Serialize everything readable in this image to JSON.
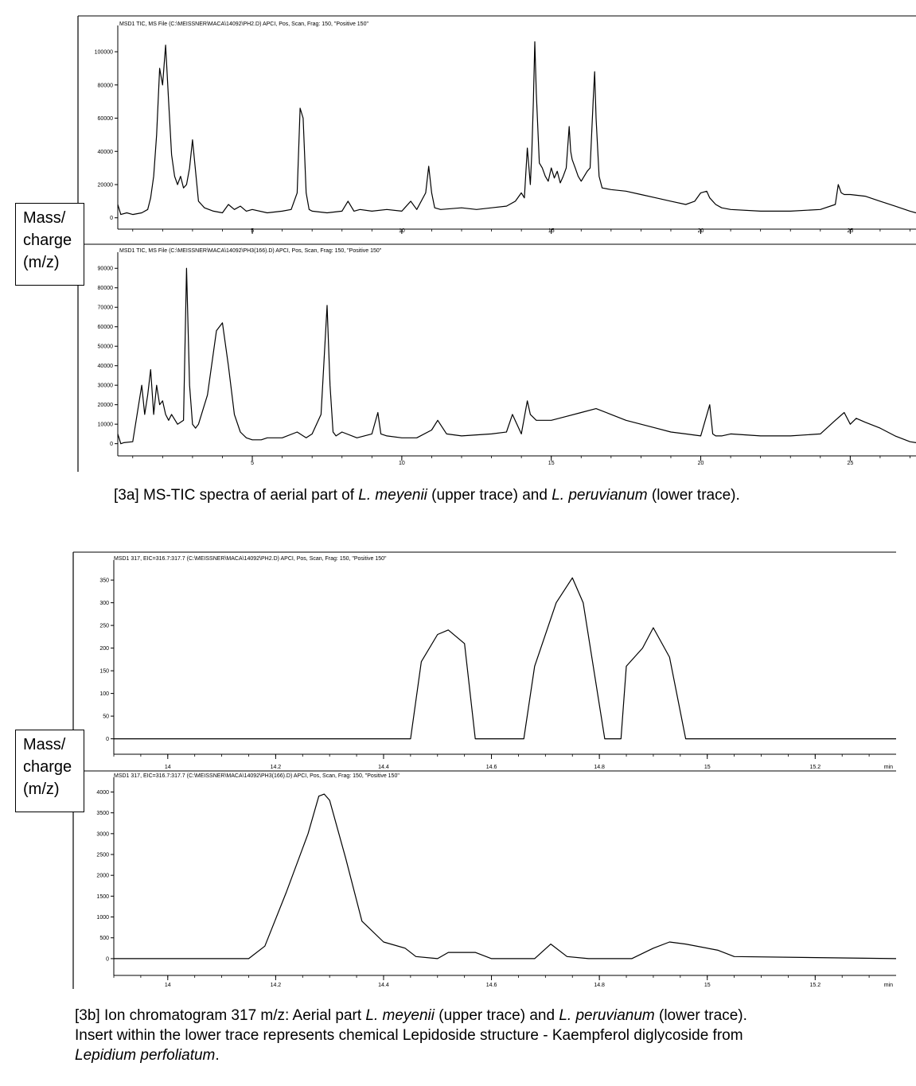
{
  "axis_box_label": [
    "Mass/",
    "charge",
    "(m/z)"
  ],
  "captions": {
    "fig3a": [
      {
        "t": "[3a] MS-TIC spectra of aerial part of ",
        "i": false
      },
      {
        "t": "L. meyenii",
        "i": true
      },
      {
        "t": " (upper trace) and ",
        "i": false
      },
      {
        "t": "L. peruvianum",
        "i": true
      },
      {
        "t": " (lower trace).",
        "i": false
      }
    ],
    "fig3b_line1": [
      {
        "t": "[3b]  Ion chromatogram 317 m/z: Aerial part ",
        "i": false
      },
      {
        "t": "L. meyenii",
        "i": true
      },
      {
        "t": " (upper trace) and ",
        "i": false
      },
      {
        "t": "L. peruvianum",
        "i": true
      },
      {
        "t": " (lower trace).",
        "i": false
      }
    ],
    "fig3b_line2": [
      {
        "t": "Insert within the lower trace represents chemical Lepidoside structure - Kaempferol diglycoside from",
        "i": false
      }
    ],
    "fig3b_line3": [
      {
        "t": "Lepidium perfoliatum",
        "i": true
      },
      {
        "t": ".",
        "i": false
      }
    ]
  },
  "chart_data": [
    {
      "type": "line",
      "header": "MSD1 TIC, MS File (C:\\MEISSNER\\MACA\\14092\\PH2.D)    APCI, Pos, Scan, Frag: 150, \"Positive 150\"",
      "xlim": [
        0.5,
        27.2
      ],
      "ylim": [
        -3000,
        112000
      ],
      "xticks": [
        5,
        10,
        15,
        20,
        25
      ],
      "yticks": [
        0,
        20000,
        40000,
        60000,
        80000,
        100000
      ],
      "x": [
        0.5,
        0.6,
        0.8,
        1.0,
        1.3,
        1.5,
        1.6,
        1.7,
        1.8,
        1.9,
        2.0,
        2.1,
        2.2,
        2.3,
        2.4,
        2.5,
        2.6,
        2.7,
        2.8,
        2.9,
        3.0,
        3.2,
        3.4,
        3.7,
        4.0,
        4.2,
        4.4,
        4.6,
        4.8,
        5.0,
        5.5,
        6.0,
        6.3,
        6.5,
        6.6,
        6.7,
        6.8,
        6.9,
        7.0,
        7.5,
        8.0,
        8.2,
        8.4,
        8.6,
        9.0,
        9.5,
        10.0,
        10.3,
        10.5,
        10.8,
        10.9,
        11.0,
        11.1,
        11.3,
        12.0,
        12.5,
        13.0,
        13.5,
        13.8,
        14.0,
        14.1,
        14.2,
        14.3,
        14.35,
        14.4,
        14.45,
        14.5,
        14.6,
        14.7,
        14.8,
        14.9,
        15.0,
        15.1,
        15.2,
        15.3,
        15.4,
        15.5,
        15.6,
        15.65,
        15.7,
        15.8,
        15.9,
        16.0,
        16.2,
        16.3,
        16.4,
        16.45,
        16.5,
        16.6,
        16.7,
        17.0,
        17.5,
        18.0,
        18.5,
        19.0,
        19.5,
        19.8,
        20.0,
        20.2,
        20.3,
        20.5,
        20.7,
        21.0,
        22.0,
        23.0,
        24.0,
        24.5,
        24.6,
        24.7,
        24.8,
        25.0,
        25.5,
        26.0,
        26.5,
        27.0,
        27.2
      ],
      "y": [
        8000,
        2000,
        3000,
        2000,
        3000,
        5000,
        12000,
        25000,
        50000,
        90000,
        80000,
        104000,
        70000,
        38000,
        25000,
        20000,
        25000,
        18000,
        20000,
        30000,
        47000,
        10000,
        6000,
        4000,
        3000,
        8000,
        5000,
        7000,
        4000,
        5000,
        3000,
        4000,
        5000,
        15000,
        66000,
        60000,
        15000,
        5000,
        4000,
        3000,
        4000,
        10000,
        4000,
        5000,
        4000,
        5000,
        4000,
        10000,
        5000,
        15000,
        31000,
        15000,
        6000,
        5000,
        6000,
        5000,
        6000,
        7000,
        10000,
        15000,
        12000,
        42000,
        20000,
        40000,
        70000,
        106000,
        75000,
        33000,
        30000,
        25000,
        22000,
        30000,
        24000,
        28000,
        21000,
        25000,
        30000,
        55000,
        40000,
        35000,
        30000,
        25000,
        22000,
        28000,
        30000,
        70000,
        88000,
        60000,
        25000,
        18000,
        17000,
        16000,
        14000,
        12000,
        10000,
        8000,
        10000,
        15000,
        16000,
        12000,
        8000,
        6000,
        5000,
        4000,
        4000,
        5000,
        8000,
        20000,
        15000,
        14000,
        14000,
        13000,
        10000,
        7000,
        4000,
        3000
      ]
    },
    {
      "type": "line",
      "header": "MSD1 TIC, MS File (C:\\MEISSNER\\MACA\\14092\\PH3(166).D)    APCI, Pos, Scan, Frag: 150, \"Positive 150\"",
      "xlim": [
        0.5,
        27.2
      ],
      "ylim": [
        -3000,
        95000
      ],
      "xticks": [
        5,
        10,
        15,
        20,
        25
      ],
      "yticks": [
        0,
        10000,
        20000,
        30000,
        40000,
        50000,
        60000,
        70000,
        80000,
        90000
      ],
      "x": [
        0.5,
        0.6,
        0.7,
        1.0,
        1.3,
        1.4,
        1.5,
        1.6,
        1.7,
        1.8,
        1.9,
        2.0,
        2.1,
        2.2,
        2.3,
        2.5,
        2.7,
        2.8,
        2.9,
        3.0,
        3.1,
        3.2,
        3.5,
        3.8,
        4.0,
        4.2,
        4.4,
        4.6,
        4.8,
        5.0,
        5.3,
        5.5,
        6.0,
        6.5,
        6.8,
        7.0,
        7.3,
        7.5,
        7.6,
        7.7,
        7.8,
        8.0,
        8.5,
        9.0,
        9.2,
        9.3,
        9.5,
        10.0,
        10.5,
        11.0,
        11.2,
        11.5,
        12.0,
        13.0,
        13.5,
        13.7,
        14.0,
        14.2,
        14.3,
        14.5,
        15.0,
        15.5,
        16.0,
        16.5,
        17.0,
        17.5,
        18.0,
        18.5,
        19.0,
        19.5,
        20.0,
        20.3,
        20.4,
        20.5,
        20.7,
        21.0,
        22.0,
        23.0,
        24.0,
        24.5,
        24.8,
        25.0,
        25.2,
        25.5,
        26.0,
        26.5,
        27.0,
        27.2
      ],
      "y": [
        5000,
        0,
        500,
        1000,
        30000,
        15000,
        25000,
        38000,
        15000,
        30000,
        20000,
        22000,
        15000,
        12000,
        15000,
        10000,
        12000,
        90000,
        30000,
        10000,
        8000,
        10000,
        25000,
        58000,
        62000,
        40000,
        15000,
        6000,
        3000,
        2000,
        2000,
        3000,
        3000,
        6000,
        3000,
        5000,
        15000,
        71000,
        30000,
        6000,
        4000,
        6000,
        3000,
        5000,
        16000,
        5000,
        4000,
        3000,
        3000,
        7000,
        12000,
        5000,
        4000,
        5000,
        6000,
        15000,
        5000,
        22000,
        15000,
        12000,
        12000,
        14000,
        16000,
        18000,
        15000,
        12000,
        10000,
        8000,
        6000,
        5000,
        4000,
        20000,
        5000,
        4000,
        4000,
        5000,
        4000,
        4000,
        5000,
        12000,
        16000,
        10000,
        13000,
        11000,
        8000,
        4000,
        1000,
        500
      ]
    },
    {
      "type": "line",
      "header": "MSD1 317, EIC=316.7:317.7 (C:\\MEISSNER\\MACA\\14092\\PH2.D)    APCI, Pos, Scan, Frag: 150, \"Positive 150\"",
      "xlabel_end": "min",
      "xlim": [
        13.9,
        15.35
      ],
      "ylim": [
        -20,
        380
      ],
      "xticks": [
        14,
        14.2,
        14.4,
        14.6,
        14.8,
        15,
        15.2
      ],
      "yticks": [
        0,
        50,
        100,
        150,
        200,
        250,
        300,
        350
      ],
      "x": [
        13.9,
        14.45,
        14.47,
        14.5,
        14.52,
        14.55,
        14.57,
        14.6,
        14.66,
        14.68,
        14.72,
        14.75,
        14.77,
        14.81,
        14.84,
        14.85,
        14.88,
        14.9,
        14.93,
        14.96,
        15.35
      ],
      "y": [
        0,
        0,
        170,
        230,
        240,
        210,
        0,
        0,
        0,
        160,
        300,
        355,
        300,
        0,
        0,
        160,
        200,
        245,
        180,
        0,
        0
      ]
    },
    {
      "type": "line",
      "header": "MSD1 317, EIC=316.7:317.7 (C:\\MEISSNER\\MACA\\14092\\PH3(166).D)    APCI, Pos, Scan, Frag: 150, \"Positive 150\"",
      "xlabel_end": "min",
      "xlim": [
        13.9,
        15.35
      ],
      "ylim": [
        -250,
        4200
      ],
      "xticks": [
        14,
        14.2,
        14.4,
        14.6,
        14.8,
        15,
        15.2
      ],
      "yticks": [
        0,
        500,
        1000,
        1500,
        2000,
        2500,
        3000,
        3500,
        4000
      ],
      "x": [
        13.9,
        14.15,
        14.18,
        14.22,
        14.26,
        14.28,
        14.29,
        14.3,
        14.33,
        14.36,
        14.4,
        14.44,
        14.46,
        14.5,
        14.52,
        14.57,
        14.6,
        14.68,
        14.71,
        14.74,
        14.78,
        14.83,
        14.86,
        14.9,
        14.93,
        14.96,
        15.02,
        15.05,
        15.35
      ],
      "y": [
        0,
        0,
        300,
        1600,
        3000,
        3900,
        3950,
        3800,
        2400,
        900,
        400,
        250,
        50,
        0,
        150,
        150,
        0,
        0,
        350,
        50,
        0,
        0,
        0,
        250,
        400,
        350,
        200,
        50,
        0
      ]
    }
  ]
}
